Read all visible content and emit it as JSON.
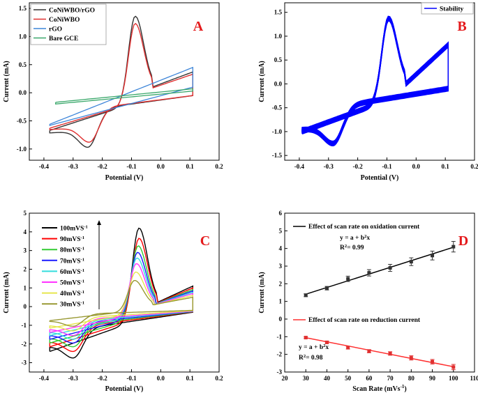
{
  "chart_data": [
    {
      "id": "A",
      "type": "line",
      "letter": "A",
      "xlabel": "Potential (V)",
      "ylabel": "Current (mA)",
      "xlim": [
        -0.45,
        0.2
      ],
      "ylim": [
        -1.2,
        1.6
      ],
      "xticks": [
        -0.4,
        -0.3,
        -0.2,
        -0.1,
        0.0,
        0.1,
        0.2
      ],
      "xtick_labels": [
        "-0.4",
        "-0.3",
        "-0.2",
        "-0.1",
        "0.0",
        "0.1",
        "0.2"
      ],
      "yticks": [
        -1.0,
        -0.5,
        0.0,
        0.5,
        1.0,
        1.5
      ],
      "ytick_labels": [
        "-1.0",
        "-0.5",
        "0.0",
        "0.5",
        "1.0",
        "1.5"
      ],
      "legend": [
        {
          "label": "CoNiWBO/rGO",
          "color": "#333333"
        },
        {
          "label": "CoNiWBO",
          "color": "#e03030"
        },
        {
          "label": "rGO",
          "color": "#3d85d9"
        },
        {
          "label": "Bare GCE",
          "color": "#3aa86b"
        }
      ],
      "series": [
        {
          "name": "CoNiWBO/rGO",
          "color": "#333333",
          "kind": "cv",
          "start": -0.38,
          "end": 0.11,
          "ox_peak": [
            -0.088,
            1.36
          ],
          "red_peak": [
            -0.25,
            -0.97
          ],
          "ox_base_start": -0.67,
          "ox_base_end": 0.15,
          "ox_tail": 0.22,
          "red_base_end": -0.05
        },
        {
          "name": "CoNiWBO",
          "color": "#e03030",
          "kind": "cv",
          "start": -0.38,
          "end": 0.11,
          "ox_peak": [
            -0.088,
            1.23
          ],
          "red_peak": [
            -0.245,
            -0.88
          ],
          "ox_base_start": -0.63,
          "ox_base_end": 0.13,
          "ox_tail": 0.2,
          "red_base_end": -0.05
        },
        {
          "name": "rGO",
          "color": "#3d85d9",
          "kind": "linear",
          "start": -0.38,
          "end": 0.11,
          "upper_start": -0.56,
          "upper_end": 0.45,
          "lower_start": -0.58,
          "lower_end": 0.1
        },
        {
          "name": "Bare GCE",
          "color": "#3aa86b",
          "kind": "linear",
          "start": -0.36,
          "end": 0.11,
          "upper_start": -0.17,
          "upper_end": 0.07,
          "lower_start": -0.2,
          "lower_end": 0.03
        }
      ]
    },
    {
      "id": "B",
      "type": "line",
      "letter": "B",
      "xlabel": "Potential (V)",
      "ylabel": "Current (mA)",
      "xlim": [
        -0.45,
        0.2
      ],
      "ylim": [
        -1.6,
        1.7
      ],
      "xticks": [
        -0.4,
        -0.3,
        -0.2,
        -0.1,
        0.0,
        0.1,
        0.2
      ],
      "xtick_labels": [
        "-0.4",
        "-0.3",
        "-0.2",
        "-0.1",
        "0.0",
        "0.1",
        "0.2"
      ],
      "yticks": [
        -1.5,
        -1.0,
        -0.5,
        0.0,
        0.5,
        1.0,
        1.5
      ],
      "ytick_labels": [
        "-1.5",
        "-1.0",
        "-0.5",
        "0.0",
        "0.5",
        "1.0",
        "1.5"
      ],
      "legend": [
        {
          "label": "Stability",
          "color": "#0000ff"
        }
      ],
      "series": [
        {
          "name": "Stability",
          "color": "#0000ff",
          "kind": "cv",
          "start": -0.39,
          "end": 0.11,
          "ox_peak": [
            -0.095,
            1.37
          ],
          "red_peak": [
            -0.285,
            -1.25
          ],
          "ox_base_start": -1.0,
          "ox_base_end": 0.12,
          "ox_tail": 0.7,
          "red_base_end": -0.1,
          "band": 0.1
        }
      ]
    },
    {
      "id": "C",
      "type": "line",
      "letter": "C",
      "xlabel": "Potential (V)",
      "ylabel": "Current (mA)",
      "xlim": [
        -0.45,
        0.2
      ],
      "ylim": [
        -3.5,
        5.0
      ],
      "xticks": [
        -0.4,
        -0.3,
        -0.2,
        -0.1,
        0.0,
        0.1,
        0.2
      ],
      "xtick_labels": [
        "-0.4",
        "-0.3",
        "-0.2",
        "-0.1",
        "0.0",
        "0.1",
        "0.2"
      ],
      "yticks": [
        -3,
        -2,
        -1,
        0,
        1,
        2,
        3,
        4,
        5
      ],
      "ytick_labels": [
        "-3",
        "-2",
        "-1",
        "0",
        "1",
        "2",
        "3",
        "4",
        "5"
      ],
      "legend_units": "mVS",
      "legend_exp": "-1",
      "series": [
        {
          "name": "100",
          "color": "#000000",
          "kind": "cv",
          "start": -0.38,
          "end": 0.11,
          "ox_peak": [
            -0.075,
            4.2
          ],
          "red_peak": [
            -0.3,
            -2.75
          ],
          "ox_base_start": -2.4,
          "ox_base_end": 0.3,
          "ox_tail": 0.8,
          "red_base_end": -0.3
        },
        {
          "name": "90",
          "color": "#ff0000",
          "kind": "cv",
          "start": -0.38,
          "end": 0.11,
          "ox_peak": [
            -0.075,
            3.65
          ],
          "red_peak": [
            -0.3,
            -2.4
          ],
          "ox_base_start": -2.15,
          "ox_base_end": 0.28,
          "ox_tail": 0.72,
          "red_base_end": -0.28
        },
        {
          "name": "80",
          "color": "#33cc33",
          "kind": "cv",
          "start": -0.38,
          "end": 0.11,
          "ox_peak": [
            -0.078,
            3.25
          ],
          "red_peak": [
            -0.3,
            -2.15
          ],
          "ox_base_start": -1.95,
          "ox_base_end": 0.26,
          "ox_tail": 0.65,
          "red_base_end": -0.27
        },
        {
          "name": "70",
          "color": "#1a1aff",
          "kind": "cv",
          "start": -0.38,
          "end": 0.11,
          "ox_peak": [
            -0.08,
            2.9
          ],
          "red_peak": [
            -0.3,
            -1.95
          ],
          "ox_base_start": -1.75,
          "ox_base_end": 0.24,
          "ox_tail": 0.6,
          "red_base_end": -0.26
        },
        {
          "name": "60",
          "color": "#33dddd",
          "kind": "cv",
          "start": -0.38,
          "end": 0.11,
          "ox_peak": [
            -0.082,
            2.6
          ],
          "red_peak": [
            -0.3,
            -1.75
          ],
          "ox_base_start": -1.55,
          "ox_base_end": 0.22,
          "ox_tail": 0.55,
          "red_base_end": -0.25
        },
        {
          "name": "50",
          "color": "#ff33ff",
          "kind": "cv",
          "start": -0.38,
          "end": 0.11,
          "ox_peak": [
            -0.084,
            2.3
          ],
          "red_peak": [
            -0.3,
            -1.55
          ],
          "ox_base_start": -1.38,
          "ox_base_end": 0.2,
          "ox_tail": 0.5,
          "red_base_end": -0.24
        },
        {
          "name": "40",
          "color": "#e6e64d",
          "kind": "cv",
          "start": -0.38,
          "end": 0.11,
          "ox_peak": [
            -0.086,
            1.85
          ],
          "red_peak": [
            -0.3,
            -1.3
          ],
          "ox_base_start": -1.15,
          "ox_base_end": 0.18,
          "ox_tail": 0.42,
          "red_base_end": -0.22
        },
        {
          "name": "30",
          "color": "#999933",
          "kind": "cv",
          "start": -0.38,
          "end": 0.11,
          "ox_peak": [
            -0.09,
            1.4
          ],
          "red_peak": [
            -0.3,
            -1.05
          ],
          "ox_base_start": -0.75,
          "ox_base_end": 0.15,
          "ox_tail": 0.35,
          "red_base_end": -0.2
        }
      ]
    },
    {
      "id": "D",
      "type": "scatter",
      "letter": "D",
      "xlabel": "Scan Rate (mVs",
      "xlabel_exp": "-1",
      "xlabel_close": ")",
      "ylabel": "Current (mA)",
      "xlim": [
        20,
        110
      ],
      "ylim": [
        -3,
        6
      ],
      "xticks": [
        20,
        30,
        40,
        50,
        60,
        70,
        80,
        90,
        100,
        110
      ],
      "xtick_labels": [
        "20",
        "30",
        "40",
        "50",
        "60",
        "70",
        "80",
        "90",
        "100",
        "110"
      ],
      "yticks": [
        -3,
        -2,
        -1,
        0,
        1,
        2,
        3,
        4,
        5,
        6
      ],
      "ytick_labels": [
        "-3",
        "-2",
        "-1",
        "0",
        "1",
        "2",
        "3",
        "4",
        "5",
        "6"
      ],
      "series": [
        {
          "name": "Effect of scan rate on oxidation current",
          "color": "#333333",
          "fit_color": "#000000",
          "x": [
            30,
            40,
            50,
            60,
            70,
            80,
            90,
            100
          ],
          "y": [
            1.35,
            1.75,
            2.28,
            2.62,
            2.9,
            3.25,
            3.6,
            4.1
          ],
          "err": [
            0.08,
            0.1,
            0.15,
            0.18,
            0.2,
            0.22,
            0.25,
            0.3
          ],
          "fit": [
            0.27,
            0.038
          ],
          "equation": "y =  a + b",
          "equation_exp": "2",
          "equation_tail": "x",
          "r2_prefix": "R",
          "r2_exp": "2",
          "r2_value": "= 0.99"
        },
        {
          "name": "Effect of scan rate on reduction current",
          "color": "#e03030",
          "fit_color": "#ff3030",
          "x": [
            30,
            40,
            50,
            60,
            70,
            80,
            90,
            100
          ],
          "y": [
            -1.05,
            -1.32,
            -1.62,
            -1.82,
            -1.95,
            -2.2,
            -2.42,
            -2.72
          ],
          "err": [
            0.05,
            0.07,
            0.08,
            0.09,
            0.1,
            0.12,
            0.13,
            0.15
          ],
          "fit": [
            -0.35,
            -0.0235
          ],
          "equation": "y =  a + b",
          "equation_exp": "2",
          "equation_tail": "x",
          "r2_prefix": "R",
          "r2_exp": "2",
          "r2_value": "= 0.98"
        }
      ]
    }
  ]
}
